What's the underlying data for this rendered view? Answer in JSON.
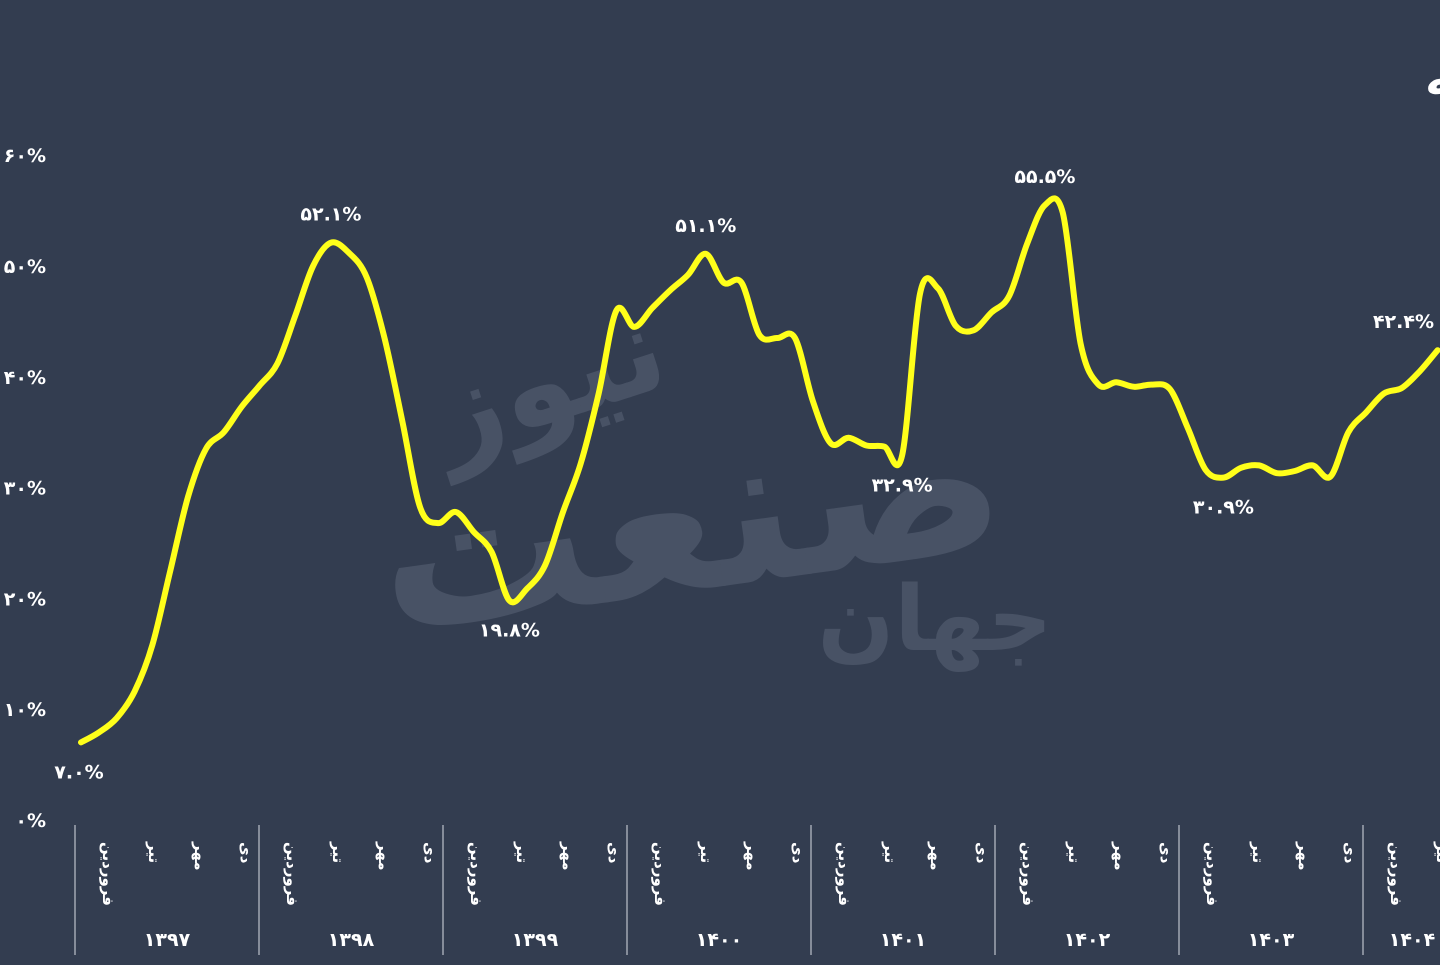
{
  "watermark": {
    "main": "صنعت",
    "top": "نیوز",
    "bottom": "جهان"
  },
  "chart_data": {
    "type": "line",
    "title": "روند تورم نقطه‌به‌نقطه",
    "y_ticks": [
      "۰%",
      "۱۰%",
      "۲۰%",
      "۳۰%",
      "۴۰%",
      "۵۰%",
      "۶۰%"
    ],
    "ylim": [
      0,
      60
    ],
    "grid": false,
    "colors": {
      "line": "#ffff1a",
      "background": "#333d50",
      "text": "#ffffff"
    },
    "years": [
      {
        "label": "۱۳۹۷",
        "months": [
          "فروردین",
          "تیر",
          "مهر",
          "دی"
        ]
      },
      {
        "label": "۱۳۹۸",
        "months": [
          "فروردین",
          "تیر",
          "مهر",
          "دی"
        ]
      },
      {
        "label": "۱۳۹۹",
        "months": [
          "فروردین",
          "تیر",
          "مهر",
          "دی"
        ]
      },
      {
        "label": "۱۴۰۰",
        "months": [
          "فروردین",
          "تیر",
          "مهر",
          "دی"
        ]
      },
      {
        "label": "۱۴۰۱",
        "months": [
          "فروردین",
          "تیر",
          "مهر",
          "دی"
        ]
      },
      {
        "label": "۱۴۰۲",
        "months": [
          "فروردین",
          "تیر",
          "مهر",
          "دی"
        ]
      },
      {
        "label": "۱۴۰۳",
        "months": [
          "فروردین",
          "تیر",
          "مهر",
          "دی"
        ]
      },
      {
        "label": "۱۴۰۴",
        "months": [
          "فروردین",
          "تیر"
        ]
      }
    ],
    "series": [
      {
        "values": [
          7.0,
          7.9,
          9.2,
          11.6,
          15.8,
          22.5,
          29.2,
          33.5,
          35.0,
          37.3,
          39.2,
          41.2,
          45.5,
          50.0,
          52.1,
          51.2,
          49.0,
          43.5,
          36.0,
          28.2,
          26.8,
          27.8,
          26.0,
          24.2,
          19.8,
          20.9,
          23.0,
          27.8,
          32.2,
          38.5,
          46.0,
          44.5,
          46.2,
          47.8,
          49.2,
          51.1,
          48.5,
          48.5,
          43.8,
          43.5,
          43.5,
          37.8,
          34.0,
          34.5,
          33.8,
          33.7,
          32.9,
          47.5,
          48.0,
          44.6,
          44.2,
          45.8,
          47.3,
          52.0,
          55.5,
          54.8,
          43.0,
          39.3,
          39.5,
          39.1,
          39.3,
          38.9,
          35.4,
          31.6,
          30.9,
          31.8,
          32.0,
          31.3,
          31.5,
          32.0,
          31.0,
          35.0,
          36.8,
          38.5,
          39.0,
          40.5,
          42.4
        ]
      }
    ],
    "annotations": [
      {
        "index": 0,
        "text": "۷.۰%"
      },
      {
        "index": 14,
        "text": "۵۲.۱%"
      },
      {
        "index": 24,
        "text": "۱۹.۸%"
      },
      {
        "index": 35,
        "text": "۵۱.۱%"
      },
      {
        "index": 46,
        "text": "۳۲.۹%"
      },
      {
        "index": 54,
        "text": "۵۵.۵%"
      },
      {
        "index": 64,
        "text": "۳۰.۹%"
      },
      {
        "index": 76,
        "text": "۴۲.۴%"
      }
    ]
  }
}
